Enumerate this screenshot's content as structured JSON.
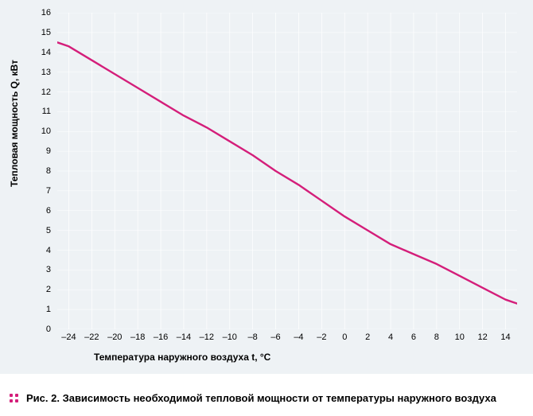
{
  "chart": {
    "type": "line",
    "background_color": "#eef2f5",
    "grid_color": "#ffffff",
    "axis_color": "#000000",
    "y_label": "Тепловая мощность Q, кВт",
    "x_label": "Температура наружного воздуха t, °C",
    "label_fontsize": 12,
    "tick_fontsize": 11,
    "xlim": [
      -25,
      15
    ],
    "ylim": [
      0,
      16
    ],
    "x_ticks": [
      -24,
      -22,
      -20,
      -18,
      -16,
      -14,
      -12,
      -10,
      -8,
      -6,
      -4,
      -2,
      0,
      2,
      4,
      6,
      8,
      10,
      12,
      14
    ],
    "y_ticks": [
      0,
      1,
      2,
      3,
      4,
      5,
      6,
      7,
      8,
      9,
      10,
      11,
      12,
      13,
      14,
      15,
      16
    ],
    "series": {
      "color": "#d41e7a",
      "width": 2.4,
      "x": [
        -25,
        -24,
        -22,
        -20,
        -18,
        -16,
        -14,
        -12,
        -10,
        -8,
        -6,
        -4,
        -2,
        0,
        2,
        4,
        6,
        8,
        10,
        12,
        14,
        15
      ],
      "y": [
        14.5,
        14.3,
        13.6,
        12.9,
        12.2,
        11.5,
        10.8,
        10.2,
        9.5,
        8.8,
        8.0,
        7.3,
        6.5,
        5.7,
        5.0,
        4.3,
        3.8,
        3.3,
        2.7,
        2.1,
        1.5,
        1.3
      ]
    }
  },
  "caption": {
    "marker_color": "#d41e7a",
    "text": "Рис. 2. Зависимость необходимой тепловой мощности от температуры наружного воздуха",
    "fontsize": 13
  }
}
